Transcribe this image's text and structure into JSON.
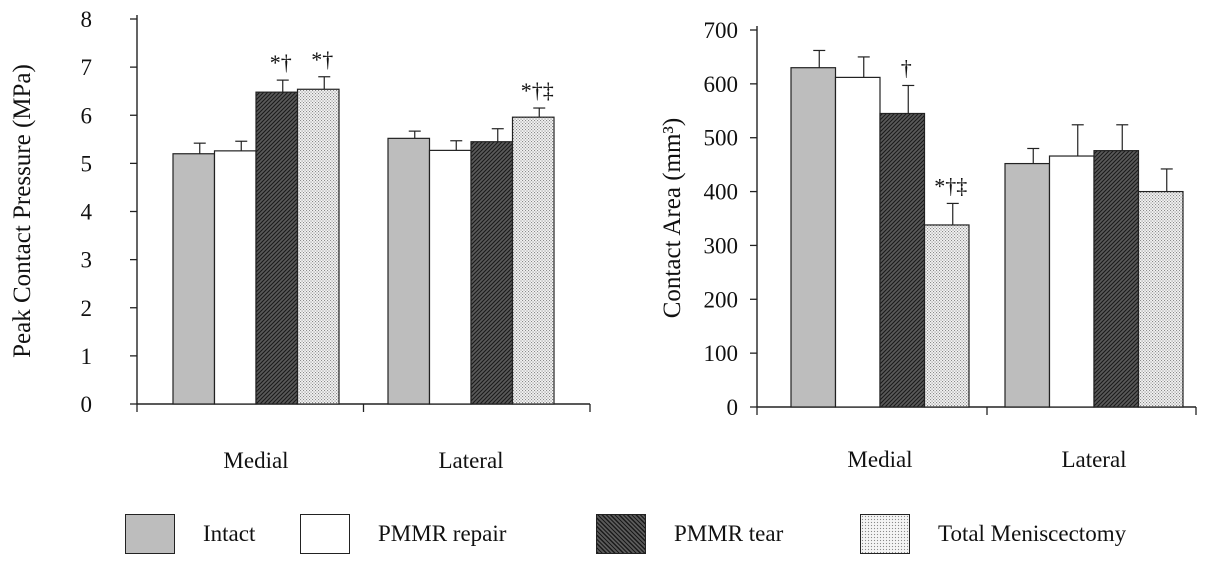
{
  "chart_data": [
    {
      "type": "bar",
      "categories": [
        "Medial",
        "Lateral"
      ],
      "ylabel": "Peak Contact Pressure (MPa)",
      "ylim": [
        0,
        8
      ],
      "yticks": [
        0,
        1,
        2,
        3,
        4,
        5,
        6,
        7,
        8
      ],
      "series": [
        {
          "name": "Intact",
          "values": [
            5.2,
            5.52
          ],
          "errors": [
            0.22,
            0.15
          ],
          "annotations": [
            "",
            ""
          ]
        },
        {
          "name": "PMMR repair",
          "values": [
            5.26,
            5.27
          ],
          "errors": [
            0.2,
            0.2
          ],
          "annotations": [
            "",
            ""
          ]
        },
        {
          "name": "PMMR tear",
          "values": [
            6.48,
            5.45
          ],
          "errors": [
            0.25,
            0.27
          ],
          "annotations": [
            "*†",
            ""
          ]
        },
        {
          "name": "Total Meniscectomy",
          "values": [
            6.54,
            5.96
          ],
          "errors": [
            0.26,
            0.19
          ],
          "annotations": [
            "*†",
            "*†‡"
          ]
        }
      ]
    },
    {
      "type": "bar",
      "categories": [
        "Medial",
        "Lateral"
      ],
      "ylabel": "Contact Area (mm³)",
      "ylim": [
        0,
        700
      ],
      "yticks": [
        0,
        100,
        200,
        300,
        400,
        500,
        600,
        700
      ],
      "series": [
        {
          "name": "Intact",
          "values": [
            630,
            452
          ],
          "errors": [
            32,
            28
          ],
          "annotations": [
            "",
            ""
          ]
        },
        {
          "name": "PMMR repair",
          "values": [
            612,
            466
          ],
          "errors": [
            38,
            58
          ],
          "annotations": [
            "",
            ""
          ]
        },
        {
          "name": "PMMR tear",
          "values": [
            545,
            476
          ],
          "errors": [
            52,
            48
          ],
          "annotations": [
            "†",
            ""
          ]
        },
        {
          "name": "Total Meniscectomy",
          "values": [
            338,
            400
          ],
          "errors": [
            40,
            42
          ],
          "annotations": [
            "*†‡",
            ""
          ]
        }
      ]
    }
  ],
  "legend": {
    "items": [
      {
        "label": "Intact",
        "pattern": "solid",
        "color": "#bdbdbd"
      },
      {
        "label": "PMMR repair",
        "pattern": "solid",
        "color": "#ffffff"
      },
      {
        "label": "PMMR tear",
        "pattern": "hatch",
        "color": "#333333"
      },
      {
        "label": "Total Meniscectomy",
        "pattern": "dots",
        "color": "#9a9a9a"
      }
    ]
  }
}
